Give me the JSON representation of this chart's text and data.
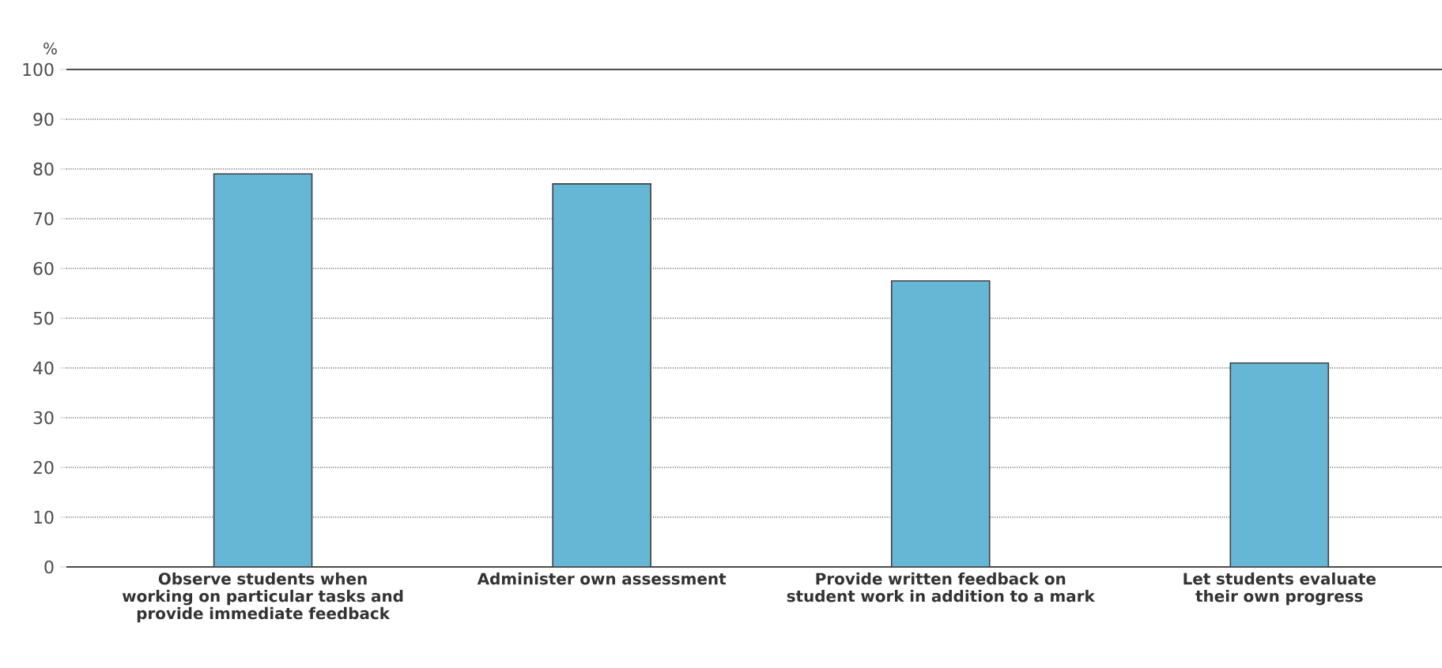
{
  "chart_data": {
    "type": "bar",
    "ylabel": "%",
    "categories": [
      "Observe students when working on particular tasks and provide immediate feedback",
      "Administer own assessment",
      "Provide written feedback on student work in addition to a mark",
      "Let students evaluate their own progress"
    ],
    "values": [
      79,
      77,
      57.5,
      41
    ],
    "color": "#66b6d6",
    "ylim": [
      0,
      100
    ],
    "yticks": [
      0,
      10,
      20,
      30,
      40,
      50,
      60,
      70,
      80,
      90,
      100
    ],
    "grid": "y"
  }
}
